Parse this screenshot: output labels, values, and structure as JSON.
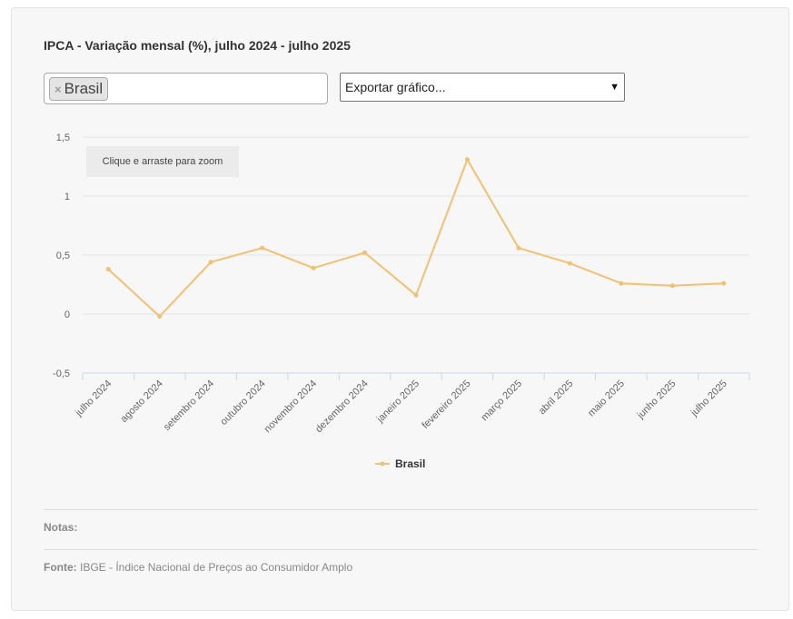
{
  "header": {
    "title": "IPCA - Variação mensal (%), julho 2024 - julho 2025"
  },
  "filter": {
    "tag_remove_symbol": "×",
    "tags": [
      "Brasil"
    ]
  },
  "export": {
    "selected": "Exportar gráfico..."
  },
  "zoom_hint": "Clique e arraste para zoom",
  "footer": {
    "notes_label": "Notas:",
    "source_label": "Fonte:",
    "source_text": "IBGE - Índice Nacional de Preços ao Consumidor Amplo"
  },
  "colors": {
    "series": "#f2c073",
    "grid": "#e6e6e6",
    "axis": "#ccd6eb"
  },
  "chart_data": {
    "type": "line",
    "title": "IPCA - Variação mensal (%), julho 2024 - julho 2025",
    "xlabel": "",
    "ylabel": "",
    "categories": [
      "julho 2024",
      "agosto 2024",
      "setembro 2024",
      "outubro 2024",
      "novembro 2024",
      "dezembro 2024",
      "janeiro 2025",
      "fevereiro 2025",
      "março 2025",
      "abril 2025",
      "maio 2025",
      "junho 2025",
      "julho 2025"
    ],
    "series": [
      {
        "name": "Brasil",
        "values": [
          0.38,
          -0.02,
          0.44,
          0.56,
          0.39,
          0.52,
          0.16,
          1.31,
          0.56,
          0.43,
          0.26,
          0.24,
          0.26
        ]
      }
    ],
    "ylim": [
      -0.5,
      1.5
    ],
    "yticks": [
      -0.5,
      0,
      0.5,
      1,
      1.5
    ],
    "ytick_labels": [
      "-0,5",
      "0",
      "0,5",
      "1",
      "1,5"
    ],
    "grid": true,
    "legend": "bottom-center"
  }
}
